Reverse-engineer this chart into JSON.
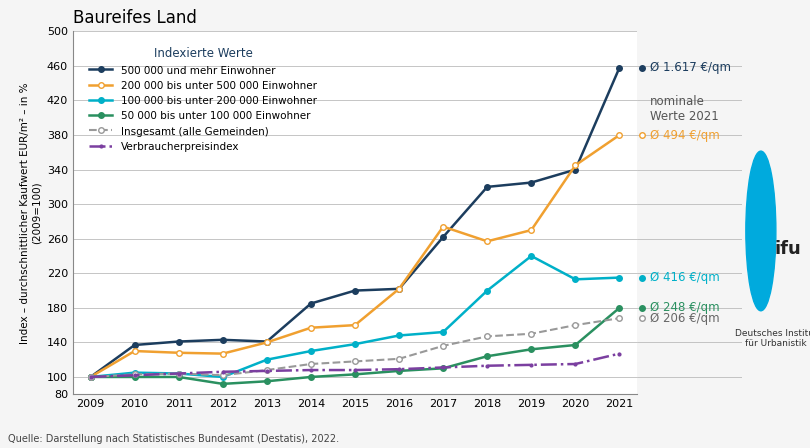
{
  "title": "Baureifes Land",
  "ylabel": "Index – durchschnittlicher Kaufwert EUR/m² – in %\n(2009=100)",
  "source": "Quelle: Darstellung nach Statistisches Bundesamt (Destatis), 2022.",
  "legend_title": "Indexierte Werte",
  "ylim": [
    80,
    500
  ],
  "yticks": [
    80,
    100,
    140,
    180,
    220,
    260,
    300,
    340,
    380,
    420,
    460,
    500
  ],
  "ytick_labels": [
    "80",
    "100",
    "140",
    "180",
    "220",
    "260",
    "300",
    "340",
    "380",
    "420",
    "460",
    "500"
  ],
  "years": [
    2009,
    2010,
    2011,
    2012,
    2013,
    2014,
    2015,
    2016,
    2017,
    2018,
    2019,
    2020,
    2021
  ],
  "series": {
    "500k": {
      "label": "500 000 und mehr Einwohner",
      "color": "#1c3d5e",
      "values": [
        100,
        137,
        141,
        143,
        141,
        185,
        200,
        202,
        262,
        320,
        325,
        340,
        458
      ],
      "marker": "o",
      "linestyle": "-",
      "linewidth": 1.8,
      "markersize": 4
    },
    "200k": {
      "label": "200 000 bis unter 500 000 Einwohner",
      "color": "#f0a030",
      "values": [
        100,
        130,
        128,
        127,
        140,
        157,
        160,
        202,
        274,
        257,
        270,
        345,
        380
      ],
      "marker": "o",
      "markerfacecolor": "white",
      "linestyle": "-",
      "linewidth": 1.8,
      "markersize": 4
    },
    "100k": {
      "label": "100 000 bis unter 200 000 Einwohner",
      "color": "#00b0c8",
      "values": [
        100,
        105,
        104,
        100,
        120,
        130,
        138,
        148,
        152,
        200,
        240,
        213,
        215
      ],
      "marker": "o",
      "linestyle": "-",
      "linewidth": 1.8,
      "markersize": 4
    },
    "50k": {
      "label": "50 000 bis unter 100 000 Einwohner",
      "color": "#2a9060",
      "values": [
        100,
        100,
        100,
        92,
        95,
        100,
        103,
        107,
        110,
        124,
        132,
        137,
        180
      ],
      "marker": "o",
      "linestyle": "-",
      "linewidth": 1.8,
      "markersize": 4
    },
    "insgesamt": {
      "label": "Insgesamt (alle Gemeinden)",
      "color": "#999999",
      "values": [
        100,
        103,
        104,
        102,
        108,
        115,
        118,
        121,
        136,
        147,
        150,
        160,
        168
      ],
      "marker": "o",
      "markerfacecolor": "white",
      "linestyle": "--",
      "linewidth": 1.5,
      "markersize": 4
    },
    "vpi": {
      "label": "Verbraucherpreisindex",
      "color": "#7b3fa0",
      "values": [
        100,
        102,
        104,
        106,
        107,
        108,
        108,
        109,
        111,
        113,
        114,
        115,
        127
      ],
      "marker": ".",
      "linestyle": "-.",
      "linewidth": 1.8,
      "markersize": 4
    }
  },
  "annotations": [
    {
      "text": "Ø 1.617 €/qm",
      "y": 458,
      "color": "#1c3d5e",
      "fontsize": 8.5,
      "va": "center"
    },
    {
      "text": "nominale\nWerte 2021",
      "y": 410,
      "color": "#555555",
      "fontsize": 8.5,
      "va": "center"
    },
    {
      "text": "Ø 494 €/qm",
      "y": 380,
      "color": "#f0a030",
      "fontsize": 8.5,
      "va": "center"
    },
    {
      "text": "Ø 416 €/qm",
      "y": 215,
      "color": "#00b0c8",
      "fontsize": 8.5,
      "va": "center"
    },
    {
      "text": "Ø 248 €/qm",
      "y": 180,
      "color": "#2a9060",
      "fontsize": 8.5,
      "va": "center"
    },
    {
      "text": "Ø 206 €/qm",
      "y": 168,
      "color": "#666666",
      "fontsize": 8.5,
      "va": "center"
    }
  ],
  "gray_band_color": "#d4d4d4",
  "bg_color": "#f5f5f5",
  "plot_bg_color": "#ffffff"
}
